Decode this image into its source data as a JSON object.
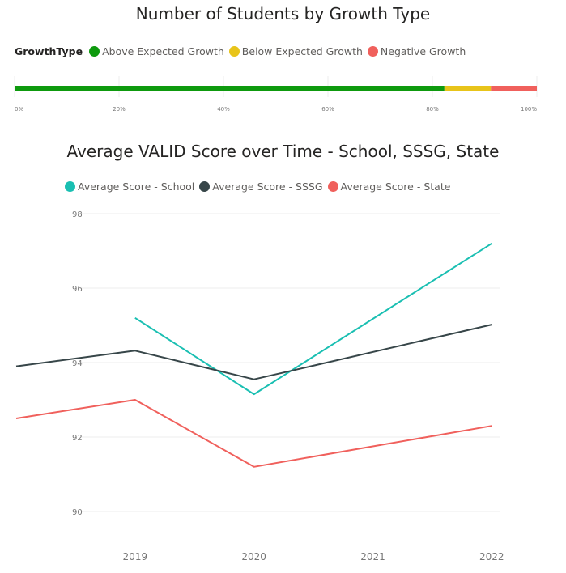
{
  "chart_data": [
    {
      "type": "bar",
      "orientation": "horizontal-stacked-100",
      "title": "Number of Students by Growth Type",
      "legend_title": "GrowthType",
      "legend_position": "top-left",
      "series": [
        {
          "name": "Above Expected Growth",
          "color": "#0e9a0e",
          "value": 82.3
        },
        {
          "name": "Below Expected Growth",
          "color": "#e8c41a",
          "value": 8.9
        },
        {
          "name": "Negative Growth",
          "color": "#f0605c",
          "value": 8.8
        }
      ],
      "xlim": [
        0,
        100
      ],
      "x_ticks": [
        "0%",
        "20%",
        "40%",
        "60%",
        "80%",
        "100%"
      ],
      "x_tick_values": [
        0,
        20,
        40,
        60,
        80,
        100
      ],
      "grid": true
    },
    {
      "type": "line",
      "title": "Average VALID Score over Time - School, SSSG, State",
      "legend_position": "top-left",
      "x": [
        2018.0,
        2019.0,
        2020.0,
        2022.0
      ],
      "series": [
        {
          "name": "Average Score - School",
          "color": "#1abfb2",
          "x": [
            2019.0,
            2020.0,
            2022.0
          ],
          "values": [
            95.2,
            93.15,
            97.2
          ]
        },
        {
          "name": "Average Score - SSSG",
          "color": "#374649",
          "x": [
            2018.0,
            2019.0,
            2020.0,
            2022.0
          ],
          "values": [
            93.9,
            94.32,
            93.55,
            95.02
          ]
        },
        {
          "name": "Average Score - State",
          "color": "#f0605c",
          "x": [
            2018.0,
            2019.0,
            2020.0,
            2022.0
          ],
          "values": [
            92.5,
            93.0,
            91.2,
            92.3
          ]
        }
      ],
      "xlim": [
        2018,
        2022.1
      ],
      "ylim": [
        90,
        98
      ],
      "y_ticks": [
        "90",
        "92",
        "94",
        "96",
        "98"
      ],
      "y_tick_values": [
        90,
        92,
        94,
        96,
        98
      ],
      "x_ticks": [
        "2019",
        "2020",
        "2021",
        "2022"
      ],
      "x_tick_values": [
        2019,
        2020,
        2021,
        2022
      ],
      "xlabel": "",
      "ylabel": "",
      "grid": true
    }
  ]
}
